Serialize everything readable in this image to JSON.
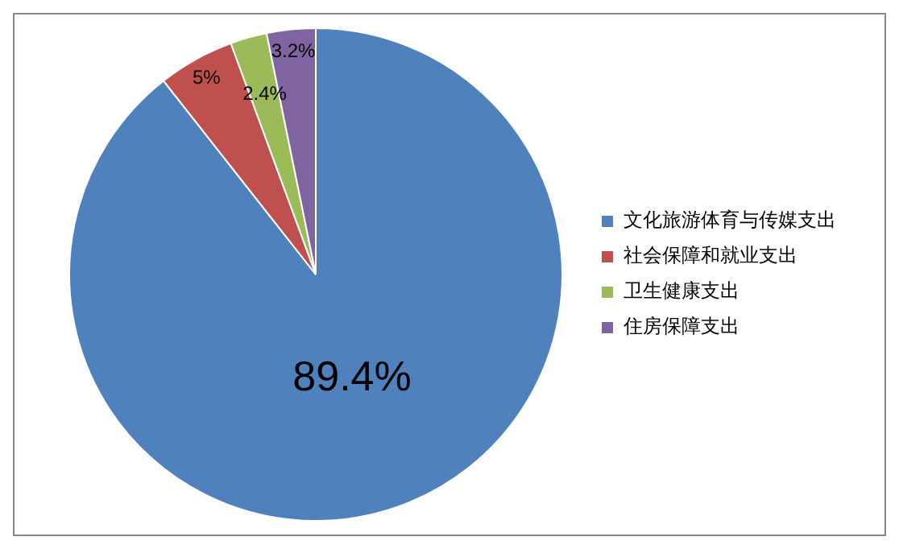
{
  "chart_data": {
    "type": "pie",
    "categories": [
      "文化旅游体育与传媒支出",
      "社会保障和就业支出",
      "卫生健康支出",
      "住房保障支出"
    ],
    "values": [
      89.4,
      5,
      2.4,
      3.2
    ],
    "colors": [
      "#4f81bd",
      "#c0504d",
      "#9bbb59",
      "#8064a2"
    ],
    "value_labels": [
      "89.4%",
      "5%",
      "2.4%",
      "3.2%"
    ],
    "legend": "right"
  }
}
